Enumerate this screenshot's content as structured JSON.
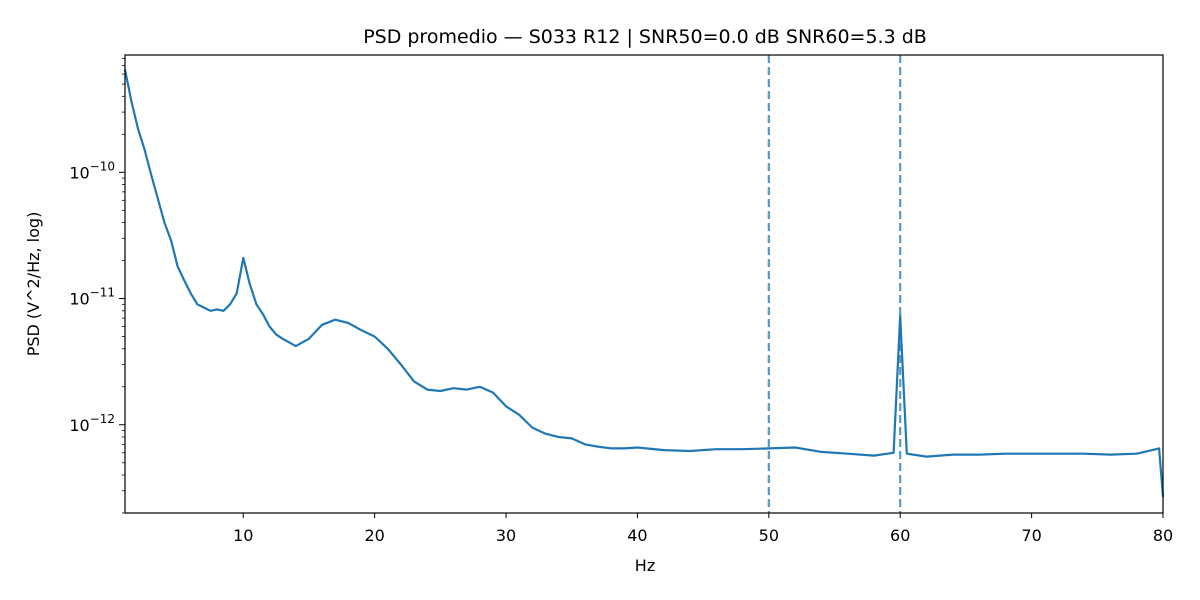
{
  "chart_data": {
    "type": "line",
    "title": "PSD promedio — S033 R12 | SNR50=0.0 dB  SNR60=5.3 dB",
    "xlabel": "Hz",
    "ylabel": "PSD (V^2/Hz, log)",
    "xlim": [
      1,
      80
    ],
    "ylim": [
      2e-13,
      8.5e-10
    ],
    "yscale": "log",
    "grid": false,
    "x_ticks": [
      10,
      20,
      30,
      40,
      50,
      60,
      70,
      80
    ],
    "x_tick_labels": [
      "10",
      "20",
      "30",
      "40",
      "50",
      "60",
      "70",
      "80"
    ],
    "y_ticks": [
      1e-10,
      1e-11,
      1e-12
    ],
    "y_tick_labels": [
      {
        "base": "10",
        "exp": "−10"
      },
      {
        "base": "10",
        "exp": "−11"
      },
      {
        "base": "10",
        "exp": "−12"
      }
    ],
    "series": [
      {
        "color": "#1f77b4",
        "x": [
          1.0,
          1.5,
          2.0,
          2.5,
          3.0,
          3.5,
          4.0,
          4.5,
          5.0,
          5.5,
          6.0,
          6.5,
          7.0,
          7.5,
          8.0,
          8.5,
          9.0,
          9.5,
          10.0,
          10.5,
          11.0,
          11.5,
          12.0,
          12.5,
          13.0,
          14.0,
          15.0,
          16.0,
          17.0,
          18.0,
          19.0,
          20.0,
          21.0,
          22.0,
          23.0,
          24.0,
          25.0,
          26.0,
          27.0,
          28.0,
          29.0,
          30.0,
          31.0,
          32.0,
          33.0,
          34.0,
          35.0,
          36.0,
          37.0,
          38.0,
          39.0,
          40.0,
          42.0,
          44.0,
          46.0,
          48.0,
          50.0,
          52.0,
          54.0,
          56.0,
          58.0,
          59.5,
          60.0,
          60.5,
          62.0,
          64.0,
          66.0,
          68.0,
          70.0,
          72.0,
          74.0,
          76.0,
          78.0,
          79.7,
          80.0
        ],
        "y": [
          6.5e-10,
          3.6e-10,
          2.2e-10,
          1.5e-10,
          9.5e-11,
          6.2e-11,
          4e-11,
          2.9e-11,
          1.8e-11,
          1.4e-11,
          1.1e-11,
          9e-12,
          8.5e-12,
          8e-12,
          8.2e-12,
          8e-12,
          9e-12,
          1.1e-11,
          2.1e-11,
          1.3e-11,
          9e-12,
          7.5e-12,
          6e-12,
          5.2e-12,
          4.8e-12,
          4.2e-12,
          4.8e-12,
          6.2e-12,
          6.8e-12,
          6.4e-12,
          5.6e-12,
          5e-12,
          4e-12,
          3e-12,
          2.2e-12,
          1.9e-12,
          1.85e-12,
          1.95e-12,
          1.9e-12,
          2e-12,
          1.8e-12,
          1.4e-12,
          1.2e-12,
          9.5e-13,
          8.5e-13,
          8e-13,
          7.8e-13,
          7e-13,
          6.7e-13,
          6.5e-13,
          6.5e-13,
          6.6e-13,
          6.3e-13,
          6.2e-13,
          6.4e-13,
          6.4e-13,
          6.5e-13,
          6.6e-13,
          6.1e-13,
          5.9e-13,
          5.7e-13,
          6e-13,
          7.3e-12,
          5.9e-13,
          5.6e-13,
          5.8e-13,
          5.8e-13,
          5.9e-13,
          5.9e-13,
          5.9e-13,
          5.9e-13,
          5.8e-13,
          5.9e-13,
          6.5e-13,
          2.7e-13
        ]
      }
    ],
    "vlines": [
      {
        "x": 50,
        "color": "#1f77b4",
        "style": "dashed"
      },
      {
        "x": 60,
        "color": "#1f77b4",
        "style": "dashed"
      }
    ]
  }
}
